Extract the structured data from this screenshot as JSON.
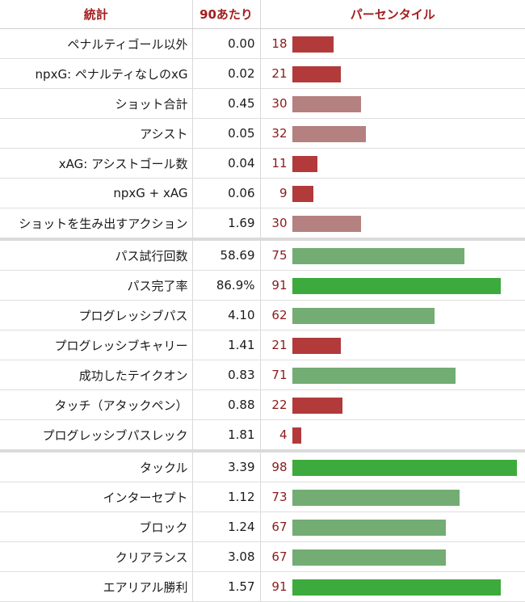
{
  "header": {
    "stat": "統計",
    "per90": "90あたり",
    "percentile": "パーセンタイル"
  },
  "colors": {
    "high": "#3daa3d",
    "midhigh": "#73ad73",
    "midlow": "#b58080",
    "low": "#b23a3a"
  },
  "rows": [
    {
      "stat": "ペナルティゴール以外",
      "per90": "0.00",
      "percentile": 18
    },
    {
      "stat": "npxG: ペナルティなしのxG",
      "per90": "0.02",
      "percentile": 21
    },
    {
      "stat": "ショット合計",
      "per90": "0.45",
      "percentile": 30
    },
    {
      "stat": "アシスト",
      "per90": "0.05",
      "percentile": 32
    },
    {
      "stat": "xAG: アシストゴール数",
      "per90": "0.04",
      "percentile": 11
    },
    {
      "stat": "npxG + xAG",
      "per90": "0.06",
      "percentile": 9
    },
    {
      "stat": "ショットを生み出すアクション",
      "per90": "1.69",
      "percentile": 30
    },
    {
      "stat": "パス試行回数",
      "per90": "58.69",
      "percentile": 75
    },
    {
      "stat": "パス完了率",
      "per90": "86.9%",
      "percentile": 91
    },
    {
      "stat": "プログレッシブパス",
      "per90": "4.10",
      "percentile": 62
    },
    {
      "stat": "プログレッシブキャリー",
      "per90": "1.41",
      "percentile": 21
    },
    {
      "stat": "成功したテイクオン",
      "per90": "0.83",
      "percentile": 71
    },
    {
      "stat": "タッチ（アタックペン）",
      "per90": "0.88",
      "percentile": 22
    },
    {
      "stat": "プログレッシブパスレック",
      "per90": "1.81",
      "percentile": 4
    },
    {
      "stat": "タックル",
      "per90": "3.39",
      "percentile": 98
    },
    {
      "stat": "インターセプト",
      "per90": "1.12",
      "percentile": 73
    },
    {
      "stat": "ブロック",
      "per90": "1.24",
      "percentile": 67
    },
    {
      "stat": "クリアランス",
      "per90": "3.08",
      "percentile": 67
    },
    {
      "stat": "エアリアル勝利",
      "per90": "1.57",
      "percentile": 91
    }
  ]
}
